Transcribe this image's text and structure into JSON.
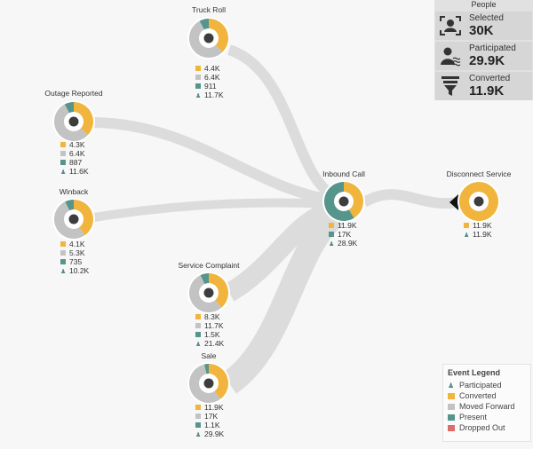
{
  "colors": {
    "converted": "#f1b43c",
    "moved_forward": "#c3c3c3",
    "present": "#55958c",
    "dropped_out": "#e06b6b",
    "participated": "#5b8a8a",
    "link": "#dddddd"
  },
  "nodes": {
    "truck_roll": {
      "title": "Truck Roll",
      "converted": "4.4K",
      "moved_forward": "6.4K",
      "present": "911",
      "participated": "11.7K"
    },
    "outage_reported": {
      "title": "Outage Reported",
      "converted": "4.3K",
      "moved_forward": "6.4K",
      "present": "887",
      "participated": "11.6K"
    },
    "winback": {
      "title": "Winback",
      "converted": "4.1K",
      "moved_forward": "5.3K",
      "present": "735",
      "participated": "10.2K"
    },
    "service_complaint": {
      "title": "Service Complaint",
      "converted": "8.3K",
      "moved_forward": "11.7K",
      "present": "1.5K",
      "participated": "21.4K"
    },
    "sale": {
      "title": "Sale",
      "converted": "11.9K",
      "moved_forward": "17K",
      "present": "1.1K",
      "participated": "29.9K"
    },
    "inbound_call": {
      "title": "Inbound Call",
      "converted": "11.9K",
      "present": "17K",
      "participated": "28.9K"
    },
    "disconnect_service": {
      "title": "Disconnect Service",
      "converted": "11.9K",
      "participated": "11.9K"
    }
  },
  "people": {
    "title": "People",
    "selected_label": "Selected",
    "selected_value": "30K",
    "participated_label": "Participated",
    "participated_value": "29.9K",
    "converted_label": "Converted",
    "converted_value": "11.9K"
  },
  "legend": {
    "title": "Event Legend",
    "participated": "Participated",
    "converted": "Converted",
    "moved_forward": "Moved Forward",
    "present": "Present",
    "dropped_out": "Dropped Out"
  }
}
